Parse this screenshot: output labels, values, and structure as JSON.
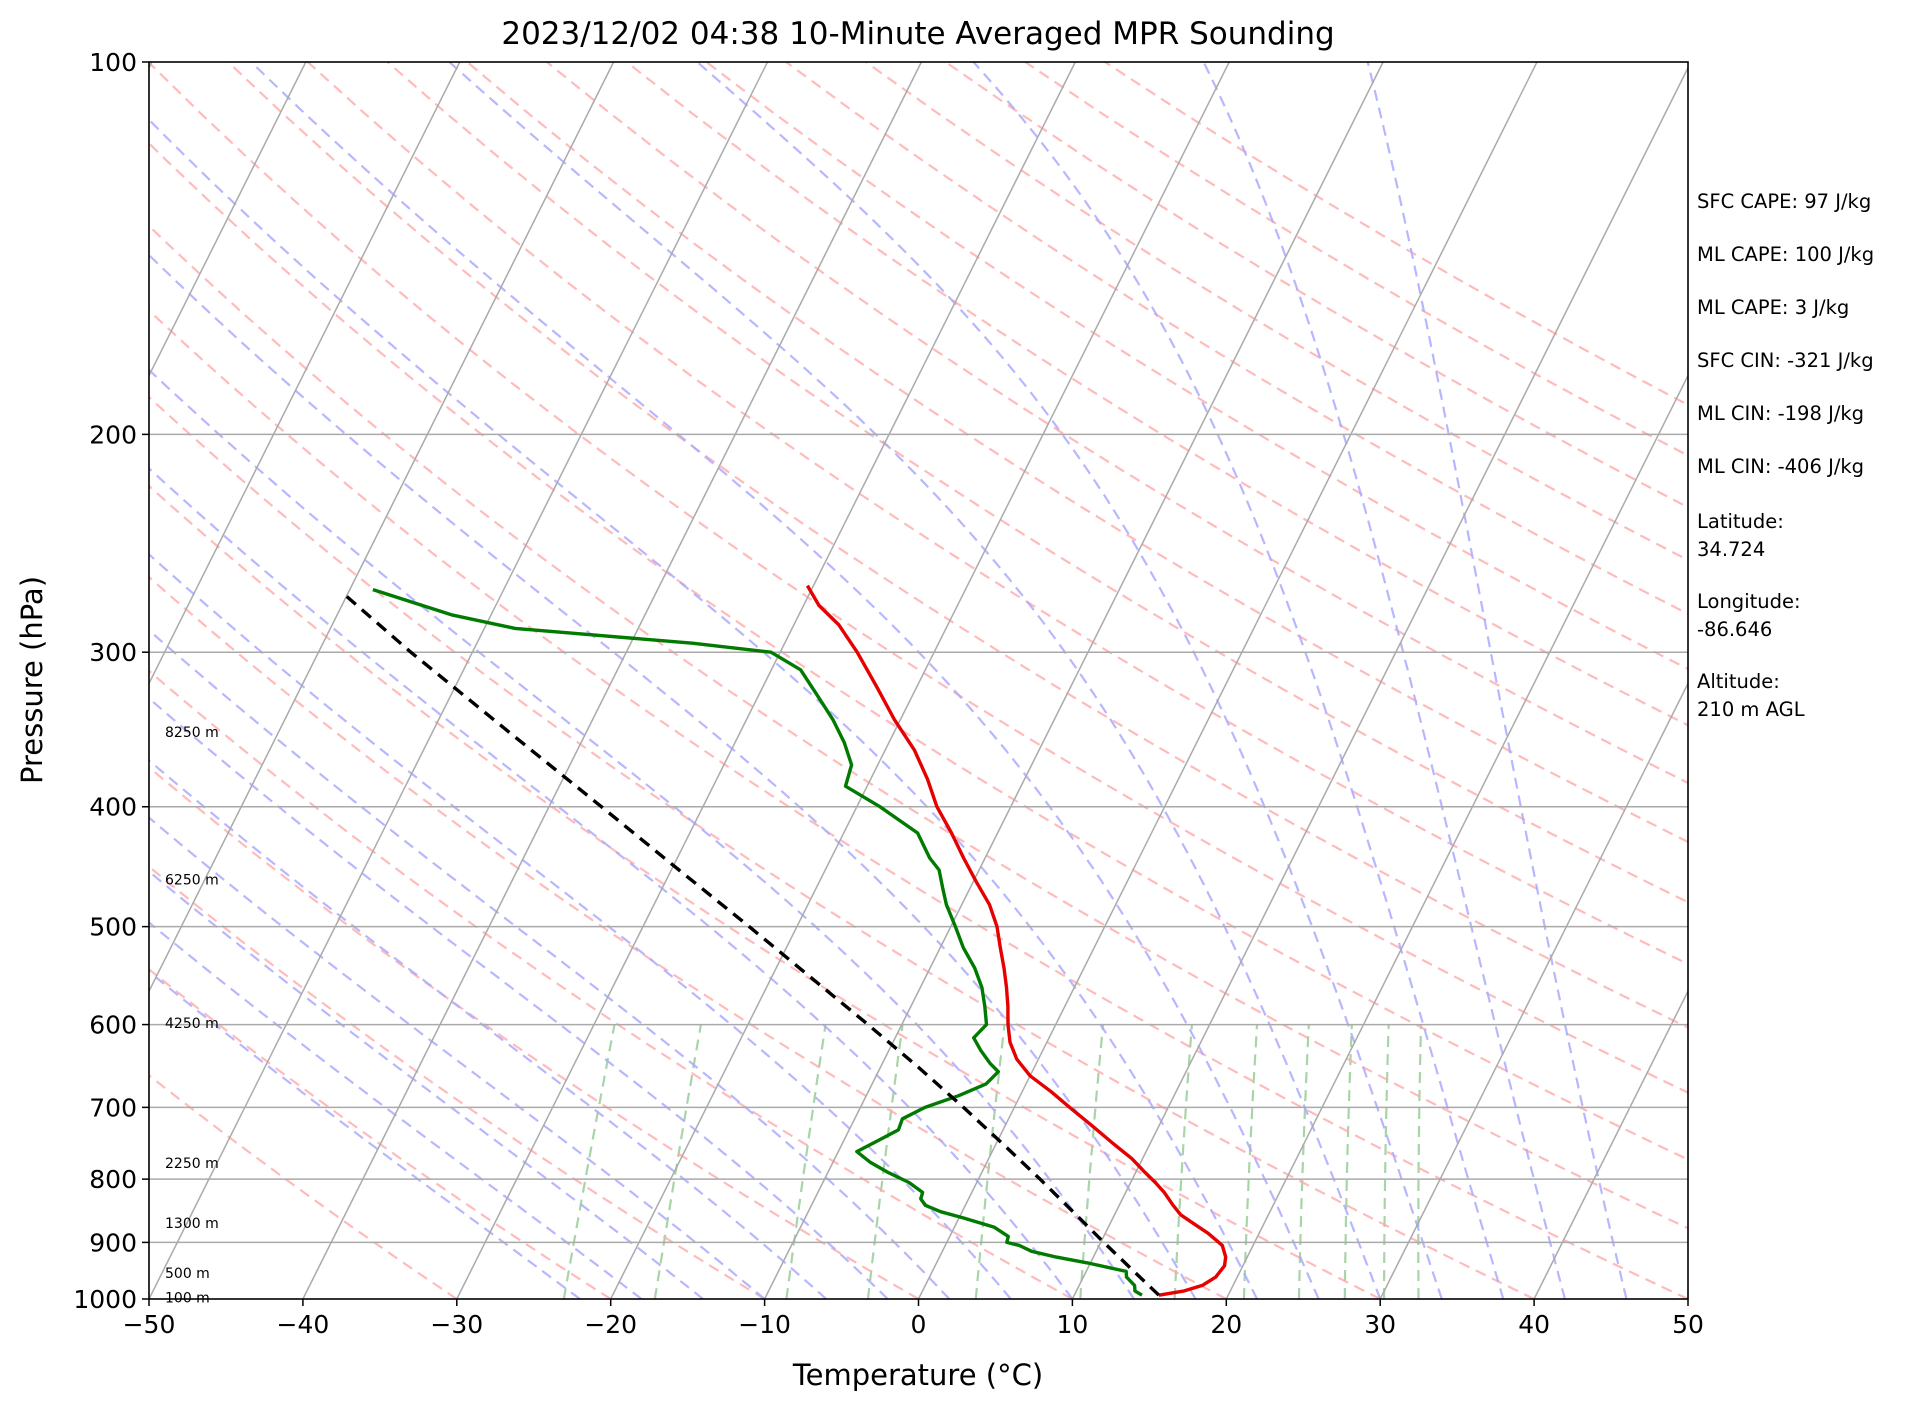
{
  "chart_data": {
    "type": "line",
    "subtype": "skew-t log-p sounding",
    "title": "2023/12/02 04:38 10-Minute Averaged MPR Sounding",
    "xlabel": "Temperature (°C)",
    "ylabel": "Pressure (hPa)",
    "xlim": [
      -50,
      50
    ],
    "ylim": [
      1000,
      100
    ],
    "y_scale": "log",
    "x_ticks": [
      "−50",
      "−40",
      "−30",
      "−20",
      "−10",
      "0",
      "10",
      "20",
      "30",
      "40",
      "50"
    ],
    "y_ticks": [
      "100",
      "200",
      "300",
      "400",
      "500",
      "600",
      "700",
      "800",
      "900",
      "1000"
    ],
    "height_labels": [
      {
        "label": "100 m",
        "p": 997
      },
      {
        "label": "500 m",
        "p": 953
      },
      {
        "label": "1300 m",
        "p": 868
      },
      {
        "label": "2250 m",
        "p": 776
      },
      {
        "label": "4250 m",
        "p": 598
      },
      {
        "label": "6250 m",
        "p": 458
      },
      {
        "label": "8250 m",
        "p": 348
      }
    ],
    "series": [
      {
        "role": "temperature",
        "color": "#e60000",
        "points": [
          [
            993,
            15.5
          ],
          [
            985,
            17
          ],
          [
            975,
            18
          ],
          [
            960,
            18.6
          ],
          [
            940,
            18.8
          ],
          [
            925,
            18.6
          ],
          [
            905,
            18
          ],
          [
            885,
            16.7
          ],
          [
            870,
            15.5
          ],
          [
            855,
            14.3
          ],
          [
            840,
            13.5
          ],
          [
            820,
            12.5
          ],
          [
            805,
            11.6
          ],
          [
            790,
            10.6
          ],
          [
            770,
            9.3
          ],
          [
            750,
            7.7
          ],
          [
            725,
            5.7
          ],
          [
            700,
            3.6
          ],
          [
            680,
            1.9
          ],
          [
            660,
            0
          ],
          [
            640,
            -1.4
          ],
          [
            620,
            -2.4
          ],
          [
            600,
            -3.1
          ],
          [
            580,
            -3.7
          ],
          [
            560,
            -4.4
          ],
          [
            540,
            -5.2
          ],
          [
            520,
            -6.1
          ],
          [
            500,
            -7
          ],
          [
            480,
            -8.2
          ],
          [
            460,
            -9.8
          ],
          [
            440,
            -11.4
          ],
          [
            420,
            -13
          ],
          [
            400,
            -14.8
          ],
          [
            380,
            -16.3
          ],
          [
            360,
            -18.1
          ],
          [
            340,
            -20.4
          ],
          [
            320,
            -22.6
          ],
          [
            300,
            -25
          ],
          [
            285,
            -27.1
          ],
          [
            275,
            -29
          ],
          [
            265,
            -30.4
          ]
        ]
      },
      {
        "role": "dewpoint",
        "color": "#007a00",
        "points": [
          [
            993,
            14.4
          ],
          [
            985,
            13.8
          ],
          [
            975,
            13.6
          ],
          [
            960,
            12.8
          ],
          [
            950,
            12.6
          ],
          [
            935,
            9.8
          ],
          [
            925,
            7.6
          ],
          [
            915,
            5.8
          ],
          [
            905,
            4.8
          ],
          [
            900,
            3.9
          ],
          [
            890,
            3.8
          ],
          [
            875,
            2.6
          ],
          [
            860,
            0.3
          ],
          [
            850,
            -1.4
          ],
          [
            840,
            -2.6
          ],
          [
            830,
            -3.1
          ],
          [
            820,
            -3.2
          ],
          [
            805,
            -4.4
          ],
          [
            790,
            -6.1
          ],
          [
            775,
            -7.6
          ],
          [
            760,
            -8.8
          ],
          [
            745,
            -7.8
          ],
          [
            730,
            -6.8
          ],
          [
            715,
            -6.9
          ],
          [
            700,
            -5.8
          ],
          [
            685,
            -4
          ],
          [
            670,
            -2.6
          ],
          [
            655,
            -2.2
          ],
          [
            645,
            -3
          ],
          [
            630,
            -4
          ],
          [
            615,
            -4.9
          ],
          [
            600,
            -4.5
          ],
          [
            580,
            -5.2
          ],
          [
            560,
            -6
          ],
          [
            540,
            -7.1
          ],
          [
            520,
            -8.5
          ],
          [
            500,
            -9.7
          ],
          [
            480,
            -11
          ],
          [
            465,
            -11.8
          ],
          [
            450,
            -12.6
          ],
          [
            440,
            -13.6
          ],
          [
            420,
            -15.2
          ],
          [
            400,
            -18.5
          ],
          [
            385,
            -21.4
          ],
          [
            370,
            -21.7
          ],
          [
            355,
            -22.9
          ],
          [
            340,
            -24.4
          ],
          [
            325,
            -26.2
          ],
          [
            310,
            -28.1
          ],
          [
            300,
            -30.6
          ],
          [
            295,
            -36
          ],
          [
            287,
            -48
          ],
          [
            280,
            -52.5
          ],
          [
            267,
            -58.5
          ]
        ]
      },
      {
        "role": "parcel",
        "color": "#000000",
        "points": [
          [
            993,
            15.5
          ],
          [
            950,
            13.1
          ],
          [
            900,
            10.2
          ],
          [
            850,
            7.2
          ],
          [
            800,
            4
          ],
          [
            750,
            0.5
          ],
          [
            700,
            -3.3
          ],
          [
            650,
            -7.5
          ],
          [
            600,
            -12.2
          ],
          [
            550,
            -17.4
          ],
          [
            500,
            -23.1
          ],
          [
            450,
            -29.5
          ],
          [
            400,
            -36.6
          ],
          [
            350,
            -44.7
          ],
          [
            300,
            -54
          ],
          [
            268,
            -60.5
          ]
        ]
      }
    ],
    "background_lines": {
      "isotherm_color": "#aaaaaa",
      "dry_adiabat_color": "#ffaaaa",
      "moist_adiabat_color": "#aaaaff",
      "mixing_ratio_color": "#99cc99",
      "isobar_color": "#aaaaaa"
    }
  },
  "info_panel": {
    "items": [
      "SFC CAPE: 97 J/kg",
      "ML CAPE: 100 J/kg",
      "ML CAPE: 3 J/kg",
      "SFC CIN: -321 J/kg",
      "ML CIN: -198 J/kg",
      "ML CIN: -406 J/kg",
      "Latitude:\n34.724",
      "Longitude:\n-86.646",
      "Altitude:\n210 m AGL"
    ]
  }
}
